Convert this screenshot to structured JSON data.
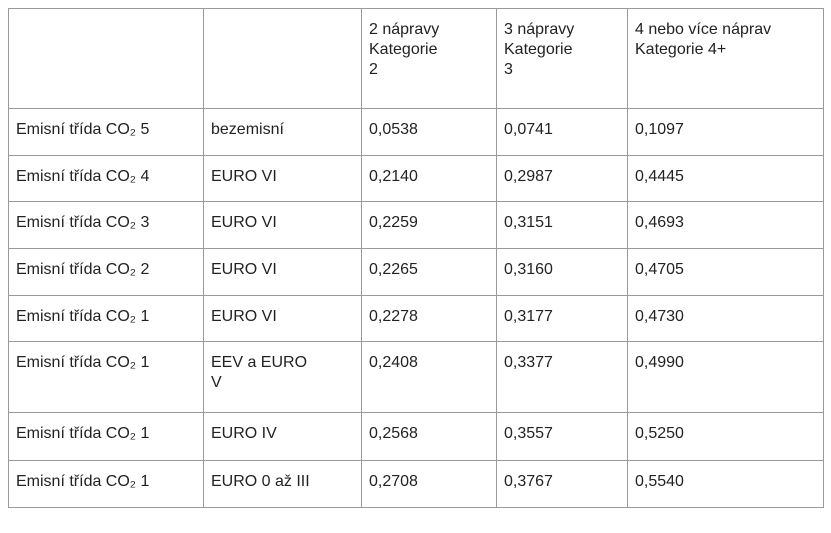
{
  "table": {
    "header": [
      [],
      [],
      [
        "2 nápravy",
        "Kategorie",
        "2"
      ],
      [
        "3 nápravy",
        "Kategorie",
        "3"
      ],
      [
        "4 nebo více náprav",
        "Kategorie 4+"
      ]
    ],
    "rows": [
      [
        "Emisní třída CO₂ 5",
        "bezemisní",
        "0,0538",
        "0,0741",
        "0,1097"
      ],
      [
        "Emisní třída CO₂ 4",
        "EURO VI",
        "0,2140",
        "0,2987",
        "0,4445"
      ],
      [
        "Emisní třída CO₂ 3",
        "EURO VI",
        "0,2259",
        "0,3151",
        "0,4693"
      ],
      [
        "Emisní třída CO₂ 2",
        "EURO VI",
        "0,2265",
        "0,3160",
        "0,4705"
      ],
      [
        "Emisní třída CO₂ 1",
        "EURO VI",
        "0,2278",
        "0,3177",
        "0,4730"
      ],
      [
        "Emisní třída CO₂ 1",
        [
          "EEV a EURO",
          "V"
        ],
        "0,2408",
        "0,3377",
        "0,4990"
      ],
      [
        "Emisní třída CO₂ 1",
        "EURO IV",
        "0,2568",
        "0,3557",
        "0,5250"
      ],
      [
        "Emisní třída CO₂ 1",
        "EURO 0 až III",
        "0,2708",
        "0,3767",
        "0,5540"
      ]
    ]
  }
}
